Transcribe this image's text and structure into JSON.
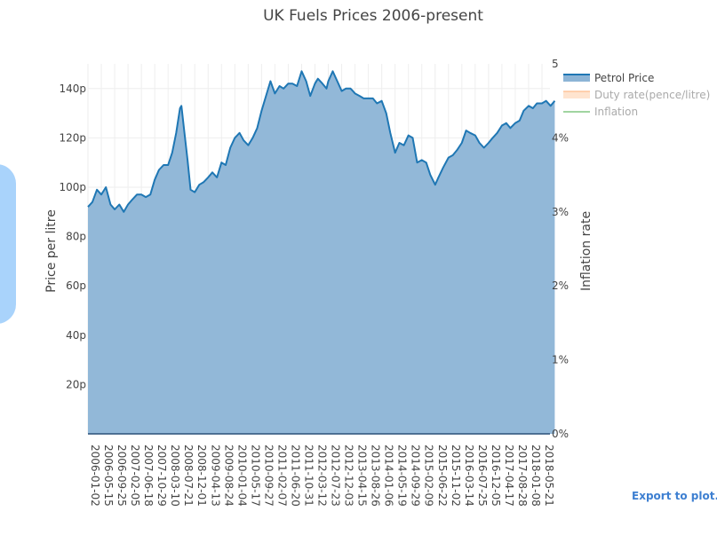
{
  "chart_data": {
    "type": "area",
    "title": "UK Fuels Prices 2006-present",
    "ylabel": "Price per litre",
    "y2label": "Inflation rate",
    "ylim": [
      0,
      150
    ],
    "y2lim": [
      0,
      5
    ],
    "yticks": [
      20,
      40,
      60,
      80,
      100,
      120,
      140
    ],
    "ytick_labels": [
      "20p",
      "40p",
      "60p",
      "80p",
      "100p",
      "120p",
      "140p"
    ],
    "y2ticks": [
      0,
      1,
      2,
      3,
      4,
      5
    ],
    "y2tick_labels": [
      "0%",
      "1%",
      "2%",
      "3%",
      "4%",
      "5"
    ],
    "x_tick_labels": [
      "2006-01-02",
      "2006-05-15",
      "2006-09-25",
      "2007-02-05",
      "2007-06-18",
      "2007-10-29",
      "2008-03-10",
      "2008-07-21",
      "2008-12-01",
      "2009-04-13",
      "2009-08-24",
      "2010-01-04",
      "2010-05-17",
      "2010-09-27",
      "2011-02-07",
      "2011-06-20",
      "2011-10-31",
      "2012-03-12",
      "2012-07-23",
      "2012-12-03",
      "2013-04-15",
      "2013-08-26",
      "2014-01-06",
      "2014-05-19",
      "2014-09-29",
      "2015-02-09",
      "2015-06-22",
      "2015-11-02",
      "2016-03-14",
      "2016-07-25",
      "2016-12-05",
      "2017-04-17",
      "2017-08-28",
      "2018-01-08",
      "2018-05-21"
    ],
    "grid": true,
    "legend_position": "top-right",
    "series": [
      {
        "name": "Petrol Price",
        "axis": "y",
        "color": "#1f77b4",
        "fill": "#8cb4d6",
        "x": [
          "2006-01-02",
          "2006-02-15",
          "2006-04-01",
          "2006-05-15",
          "2006-06-30",
          "2006-08-15",
          "2006-09-25",
          "2006-11-10",
          "2006-12-25",
          "2007-02-05",
          "2007-03-20",
          "2007-05-05",
          "2007-06-18",
          "2007-08-01",
          "2007-09-15",
          "2007-10-29",
          "2007-12-10",
          "2008-01-25",
          "2008-03-10",
          "2008-04-20",
          "2008-05-30",
          "2008-07-07",
          "2008-07-21",
          "2008-08-15",
          "2008-09-20",
          "2008-10-20",
          "2008-12-01",
          "2009-01-15",
          "2009-02-25",
          "2009-04-13",
          "2009-05-25",
          "2009-07-10",
          "2009-08-24",
          "2009-10-05",
          "2009-11-20",
          "2010-01-04",
          "2010-02-20",
          "2010-04-01",
          "2010-05-17",
          "2010-07-01",
          "2010-08-15",
          "2010-09-27",
          "2010-11-10",
          "2010-12-25",
          "2011-02-07",
          "2011-03-25",
          "2011-05-05",
          "2011-06-20",
          "2011-08-01",
          "2011-09-15",
          "2011-10-31",
          "2011-12-15",
          "2012-01-25",
          "2012-03-12",
          "2012-04-10",
          "2012-05-25",
          "2012-07-05",
          "2012-07-23",
          "2012-09-05",
          "2012-10-20",
          "2012-12-03",
          "2013-01-15",
          "2013-03-01",
          "2013-03-25",
          "2013-04-15",
          "2013-05-30",
          "2013-07-10",
          "2013-08-26",
          "2013-10-10",
          "2013-11-20",
          "2014-01-06",
          "2014-02-20",
          "2014-04-01",
          "2014-05-19",
          "2014-07-01",
          "2014-08-15",
          "2014-09-29",
          "2014-11-10",
          "2014-12-25",
          "2015-02-09",
          "2015-03-25",
          "2015-05-05",
          "2015-06-22",
          "2015-07-25",
          "2015-09-10",
          "2015-11-02",
          "2015-12-15",
          "2016-01-25",
          "2016-03-14",
          "2016-04-25",
          "2016-06-05",
          "2016-07-25",
          "2016-09-05",
          "2016-10-20",
          "2016-12-05",
          "2017-01-15",
          "2017-03-01",
          "2017-04-17",
          "2017-05-30",
          "2017-07-10",
          "2017-08-28",
          "2017-10-10",
          "2017-11-20",
          "2018-01-08",
          "2018-02-20",
          "2018-04-01",
          "2018-05-21",
          "2018-07-01",
          "2018-08-15",
          "2018-09-25"
        ],
        "y": [
          92,
          94,
          99,
          97,
          100,
          93,
          91,
          93,
          90,
          93,
          95,
          97,
          97,
          96,
          97,
          103,
          107,
          109,
          109,
          114,
          122,
          132,
          133,
          124,
          111,
          99,
          98,
          101,
          102,
          104,
          106,
          104,
          110,
          109,
          116,
          120,
          122,
          119,
          117,
          120,
          124,
          131,
          137,
          143,
          138,
          141,
          140,
          142,
          142,
          141,
          147,
          143,
          137,
          142,
          144,
          142,
          140,
          143,
          147,
          143,
          139,
          140,
          140,
          139,
          138,
          137,
          136,
          136,
          136,
          134,
          135,
          130,
          122,
          114,
          118,
          117,
          121,
          120,
          110,
          111,
          110,
          105,
          101,
          104,
          108,
          112,
          113,
          115,
          118,
          123,
          122,
          121,
          118,
          116,
          118,
          120,
          122,
          125,
          126,
          124,
          126,
          127,
          131,
          133,
          132,
          134,
          134,
          135,
          133,
          135
        ]
      },
      {
        "name": "Duty rate(pence/litre)",
        "axis": "y",
        "color": "#ffbb88",
        "visible": false
      },
      {
        "name": "Inflation",
        "axis": "y2",
        "color": "#2ca02c",
        "visible": false
      }
    ]
  },
  "export_label": "Export to plot.ly »"
}
